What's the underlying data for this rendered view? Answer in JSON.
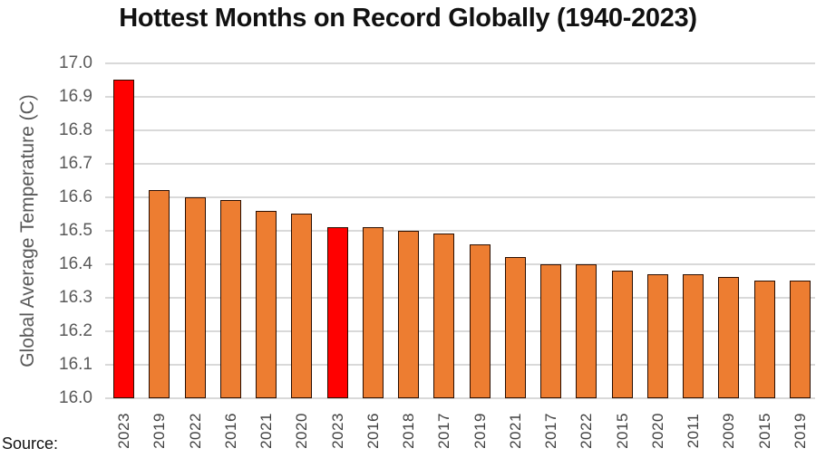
{
  "chart_data": {
    "type": "bar",
    "title": "Hottest Months on Record Globally (1940-2023)",
    "xlabel": "",
    "ylabel": "Global Average Temperature (C)",
    "ylim": [
      16.0,
      17.0
    ],
    "yticks": [
      "16.0",
      "16.1",
      "16.2",
      "16.3",
      "16.4",
      "16.5",
      "16.6",
      "16.7",
      "16.8",
      "16.9",
      "17.0"
    ],
    "grid": true,
    "legend": null,
    "categories": [
      "2023",
      "2019",
      "2022",
      "2016",
      "2021",
      "2020",
      "2023",
      "2016",
      "2018",
      "2017",
      "2019",
      "2021",
      "2017",
      "2022",
      "2015",
      "2020",
      "2011",
      "2009",
      "2015",
      "2019"
    ],
    "values": [
      16.95,
      16.62,
      16.6,
      16.59,
      16.56,
      16.55,
      16.51,
      16.51,
      16.5,
      16.49,
      16.46,
      16.42,
      16.4,
      16.4,
      16.38,
      16.37,
      16.37,
      16.36,
      16.35,
      16.35
    ],
    "highlighted_indices": [
      0,
      6
    ],
    "colors": {
      "default": "#ED7D31",
      "highlight": "#FF0000",
      "border": "#2A0E00",
      "grid": "#D9D9D9"
    }
  },
  "footer": {
    "source_label": "Source:"
  }
}
